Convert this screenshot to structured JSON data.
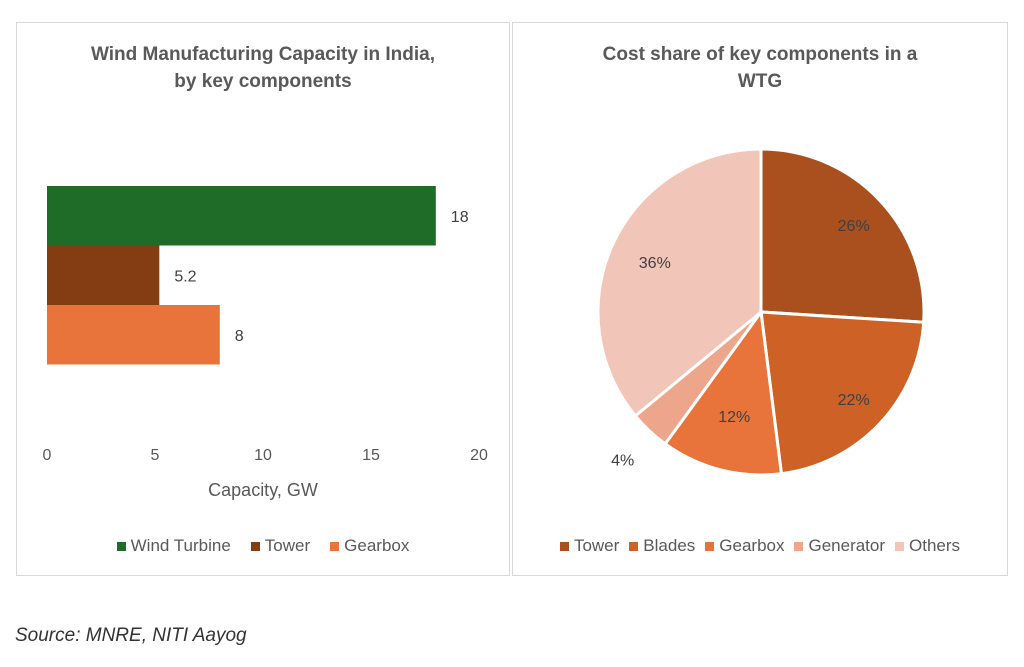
{
  "chart_data": [
    {
      "type": "bar",
      "orientation": "horizontal",
      "title": "Wind Manufacturing Capacity in India, by key components",
      "title_lines": [
        "Wind Manufacturing Capacity in India,",
        "by key components"
      ],
      "categories": [
        "Wind Turbine",
        "Tower",
        "Gearbox"
      ],
      "values": [
        18,
        5.2,
        8
      ],
      "value_labels": [
        "18",
        "5.2",
        "8"
      ],
      "colors": [
        "#1f6b28",
        "#843c12",
        "#e8743b"
      ],
      "xlabel": "Capacity, GW",
      "xlim": [
        0,
        20
      ],
      "xticks": [
        "0",
        "5",
        "10",
        "15",
        "20"
      ],
      "legend": [
        "Wind Turbine",
        "Tower",
        "Gearbox"
      ],
      "legend_position": "bottom",
      "grid": false
    },
    {
      "type": "pie",
      "title": "Cost share of key components in a WTG",
      "title_lines": [
        "Cost share of key components in a",
        "WTG"
      ],
      "labels": [
        "Tower",
        "Blades",
        "Gearbox",
        "Generator",
        "Others"
      ],
      "values": [
        26,
        22,
        12,
        4,
        36
      ],
      "value_labels": [
        "26%",
        "22%",
        "12%",
        "4%",
        "36%"
      ],
      "colors": [
        "#a9501e",
        "#cd6126",
        "#e8743b",
        "#eda58c",
        "#f1c5b7"
      ],
      "legend": [
        "Tower",
        "Blades",
        "Gearbox",
        "Generator",
        "Others"
      ],
      "legend_position": "bottom"
    }
  ],
  "source": "Source: MNRE, NITI Aayog"
}
